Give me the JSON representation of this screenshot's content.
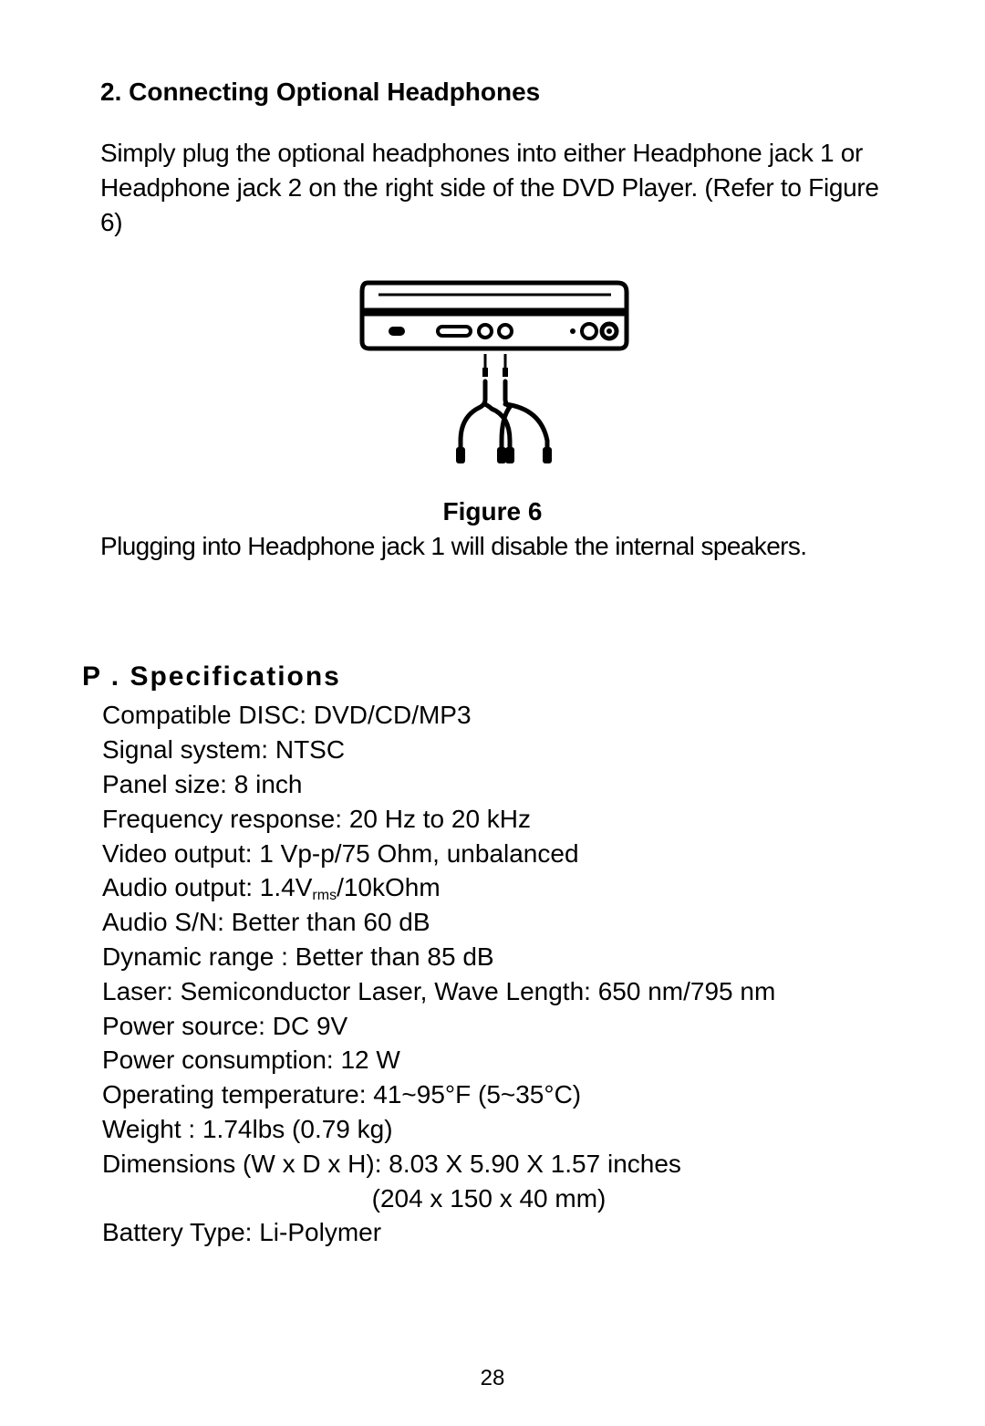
{
  "section": {
    "heading": "2. Connecting Optional Headphones",
    "body": "Simply plug the optional headphones into either Headphone jack 1 or Headphone jack 2  on the right side of the DVD Player. (Refer to Figure 6)",
    "figure_caption": "Figure 6",
    "figure_note": "Plugging into Headphone jack 1 will disable the internal speakers."
  },
  "spec": {
    "heading": "P .  Specifications",
    "lines": [
      [
        "Compatible DISC: DVD/CD/MP3"
      ],
      [
        "Signal system: NTSC"
      ],
      [
        "Panel size: 8 inch"
      ],
      [
        "Frequency response: 20 Hz to 20 kHz"
      ],
      [
        "Video output: 1 Vp-p/75 Ohm, unbalanced"
      ],
      [
        "Audio output: 1.4V",
        "rms",
        "/10kOhm"
      ],
      [
        "Audio S/N: Better than 60 dB"
      ],
      [
        "Dynamic range : Better than 85 dB"
      ],
      [
        "Laser: Semiconductor Laser,  Wave Length: 650 nm/795 nm"
      ],
      [
        "Power source: DC 9V"
      ],
      [
        "Power consumption: 12 W"
      ],
      [
        "Operating temperature: 41~95°F (5~35°C)"
      ],
      [
        "Weight : 1.74lbs (0.79 kg)"
      ],
      [
        "Dimensions (W x D x H): 8.03 X 5.90 X 1.57 inches"
      ],
      [
        "                                      (204 x 150 x 40 mm)"
      ],
      [
        "Battery Type: Li-Polymer"
      ]
    ]
  },
  "page_number": "28",
  "figure": {
    "stroke": "#000000",
    "stroke_width": 5,
    "background": "#ffffff"
  }
}
